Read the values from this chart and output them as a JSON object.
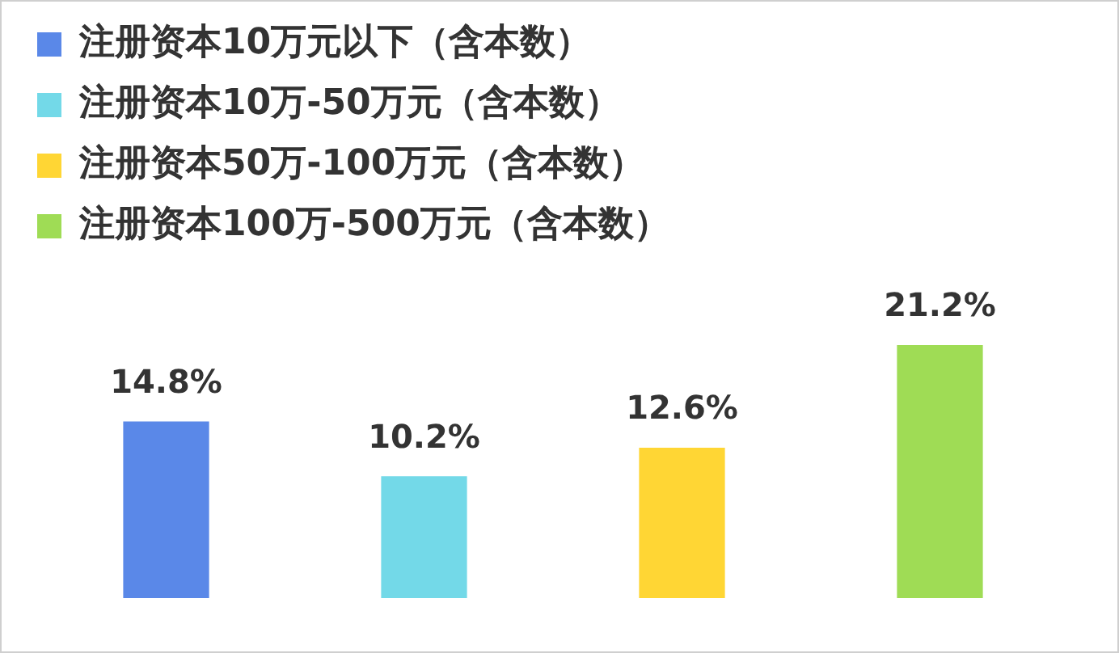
{
  "chart_data": {
    "type": "bar",
    "stacked": true,
    "categories": [
      null,
      null,
      null,
      null
    ],
    "series": [
      {
        "name": "注册资本10万元以下（含本数）",
        "color": "#5a88e8",
        "values": [
          14.8,
          null,
          null,
          null
        ],
        "value_labels": [
          "14.8%",
          null,
          null,
          null
        ]
      },
      {
        "name": "注册资本10万-50万元（含本数）",
        "color": "#73d9e8",
        "values": [
          null,
          10.2,
          null,
          null
        ],
        "value_labels": [
          null,
          "10.2%",
          null,
          null
        ]
      },
      {
        "name": "注册资本50万-100万元（含本数）",
        "color": "#ffd634",
        "values": [
          null,
          null,
          12.6,
          null
        ],
        "value_labels": [
          null,
          null,
          "12.6%",
          null
        ]
      },
      {
        "name": "注册资本100万-500万元（含本数）",
        "color": "#9fdc55",
        "values": [
          null,
          null,
          null,
          21.2
        ],
        "value_labels": [
          null,
          null,
          null,
          "21.2%"
        ]
      }
    ],
    "legend": "top left",
    "tick_labels": false
  }
}
